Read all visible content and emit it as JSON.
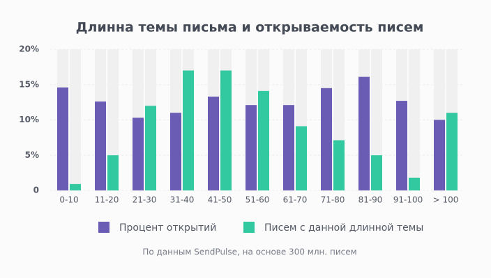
{
  "chart_data": {
    "type": "bar",
    "title": "Длинна темы письма и открываемость писем",
    "categories": [
      "0-10",
      "11-20",
      "21-30",
      "31-40",
      "41-50",
      "51-60",
      "61-70",
      "71-80",
      "81-90",
      "91-100",
      "> 100"
    ],
    "series": [
      {
        "name": "Процент открытий",
        "color": "#6a5bb5",
        "values": [
          14.6,
          12.6,
          10.3,
          11.0,
          13.3,
          12.1,
          12.1,
          14.5,
          16.1,
          12.7,
          10.0
        ]
      },
      {
        "name": "Писем с данной длинной темы",
        "color": "#33c9a0",
        "values": [
          0.9,
          5.0,
          12.0,
          17.0,
          17.0,
          14.1,
          9.1,
          7.1,
          5.0,
          1.8,
          11.0
        ]
      }
    ],
    "ylim": [
      0,
      20
    ],
    "yticks": [
      0,
      {
        "value": 5,
        "label": "5%"
      },
      {
        "value": 10,
        "label": "10%"
      },
      {
        "value": 15,
        "label": "15%"
      },
      {
        "value": 20,
        "label": "20%"
      }
    ],
    "grid": true,
    "source": "По данным SendPulse, на основе 300 млн. писем"
  }
}
